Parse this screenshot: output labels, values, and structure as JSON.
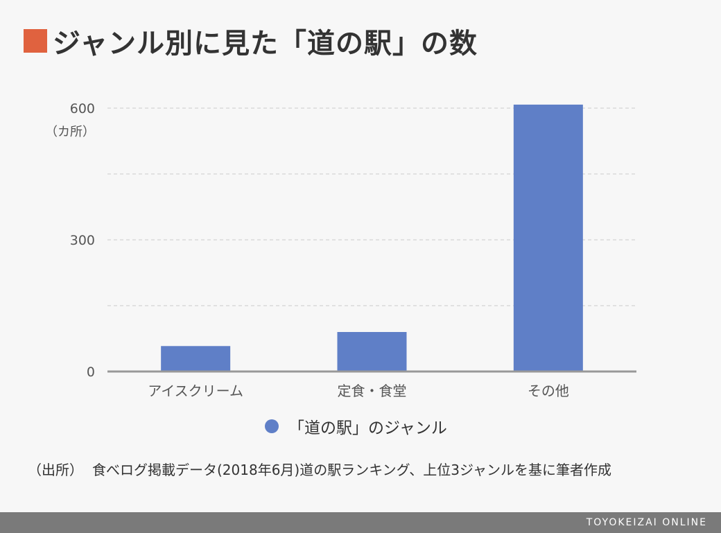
{
  "header": {
    "title": "ジャンル別に見た「道の駅」の数"
  },
  "chart_data": {
    "type": "bar",
    "categories": [
      "アイスクリーム",
      "定食・食堂",
      "その他"
    ],
    "series": [
      {
        "name": "「道の駅」のジャンル",
        "values": [
          58,
          90,
          608
        ]
      }
    ],
    "y_ticks": [
      "0",
      "300",
      "600"
    ],
    "y_tick_values": [
      0,
      300,
      600
    ],
    "yunit": "（カ所）",
    "ylim": [
      0,
      600
    ],
    "grid": true,
    "legend_position": "bottom"
  },
  "source": {
    "prefix": "（出所）",
    "text": "食べログ掲載データ(2018年6月)道の駅ランキング、上位3ジャンルを基に筆者作成"
  },
  "footer": {
    "brand": "TOYOKEIZAI ONLINE"
  },
  "colors": {
    "title_square": "#e0623f",
    "bar": "#5f7fc7",
    "footer_bar": "#7a7a7a"
  }
}
